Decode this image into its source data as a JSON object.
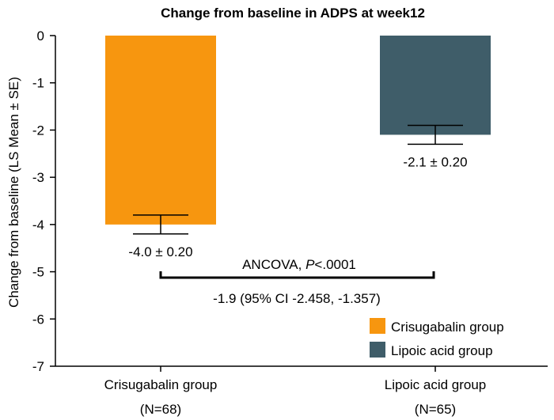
{
  "chart_data": {
    "type": "bar",
    "title": "Change from baseline in ADPS at week12",
    "ylabel": "Change from baseline (LS Mean ± SE)",
    "xlabel": "",
    "ylim": [
      -7,
      0
    ],
    "yticks": [
      0,
      -1,
      -2,
      -3,
      -4,
      -5,
      -6,
      -7
    ],
    "grid": false,
    "legend_position": "bottom-right",
    "categories": [
      {
        "name": "Crisugabalin group",
        "n": "(N=68)"
      },
      {
        "name": "Lipoic acid group",
        "n": "(N=65)"
      }
    ],
    "series": [
      {
        "name": "Crisugabalin group",
        "value": -4.0,
        "se": 0.2,
        "label": "-4.0 ± 0.20",
        "color": "#F7960F"
      },
      {
        "name": "Lipoic acid group",
        "value": -2.1,
        "se": 0.2,
        "label": "-2.1 ± 0.20",
        "color": "#3F5D69"
      }
    ],
    "comparison": {
      "test_prefix": "ANCOVA, ",
      "p_italic": "P",
      "p_value": "<.0001",
      "difference": "-1.9 (95% CI -2.458, -1.357)"
    }
  }
}
